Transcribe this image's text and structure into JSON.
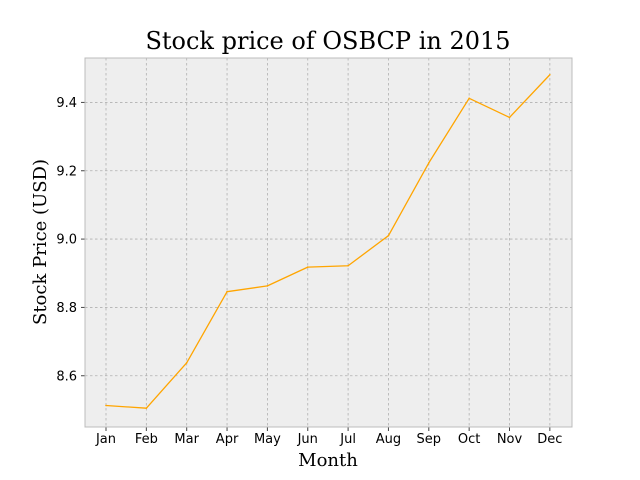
{
  "chart_data": {
    "type": "line",
    "title": "Stock price of OSBCP in 2015",
    "xlabel": "Month",
    "ylabel": "Stock Price (USD)",
    "categories": [
      "Jan",
      "Feb",
      "Mar",
      "Apr",
      "May",
      "Jun",
      "Jul",
      "Aug",
      "Sep",
      "Oct",
      "Nov",
      "Dec"
    ],
    "series": [
      {
        "values": [
          8.513,
          8.505,
          8.638,
          8.846,
          8.863,
          8.918,
          8.922,
          9.01,
          9.223,
          9.412,
          9.356,
          9.481
        ]
      }
    ],
    "ylim": [
      8.45,
      9.53
    ],
    "yticks": [
      "8.6",
      "8.8",
      "9.0",
      "9.2",
      "9.4"
    ],
    "grid": true,
    "colors": {
      "line": "#ffa500",
      "plot_background": "#eeeeee"
    }
  }
}
